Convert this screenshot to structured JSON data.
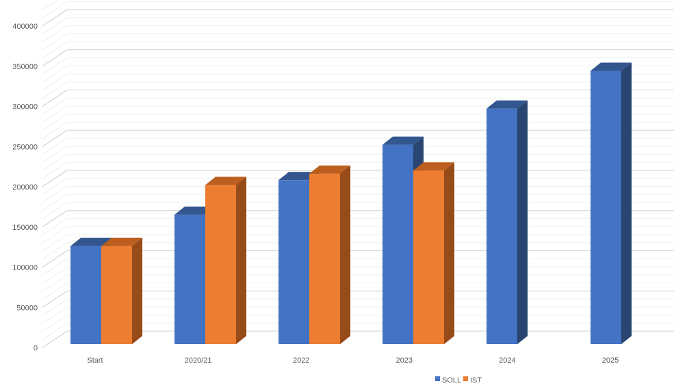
{
  "chart_data": {
    "type": "bar",
    "projection": "3d-column",
    "title": "",
    "categories": [
      "Start",
      "2020/21",
      "2022",
      "2023",
      "2024",
      "2025"
    ],
    "series": [
      {
        "name": "SOLL",
        "values": [
          122000,
          161000,
          204000,
          248000,
          293000,
          340000
        ],
        "color": "#4472C4",
        "top_color": "#33568F",
        "side_color": "#2A4571"
      },
      {
        "name": "IST",
        "values": [
          122000,
          198000,
          212000,
          216000,
          null,
          null
        ],
        "color": "#ED7D31",
        "top_color": "#BC5E1E",
        "side_color": "#964B18"
      }
    ],
    "y_axis": {
      "min": 0,
      "max": 420000,
      "major_unit": 50000,
      "minor_unit": 10000,
      "tick_labels": [
        "0",
        "50000",
        "100000",
        "150000",
        "200000",
        "250000",
        "300000",
        "350000",
        "400000"
      ]
    },
    "legend": {
      "position": "bottom",
      "entries": [
        "SOLL",
        "IST"
      ]
    },
    "grid": {
      "major_color": "#D2D2D2",
      "minor_color": "#EFEFEF",
      "major_diag_color": "#C7C7C7",
      "minor_diag_color": "#EDEDED"
    },
    "text_color": "#595959",
    "background": "#FFFFFF"
  }
}
